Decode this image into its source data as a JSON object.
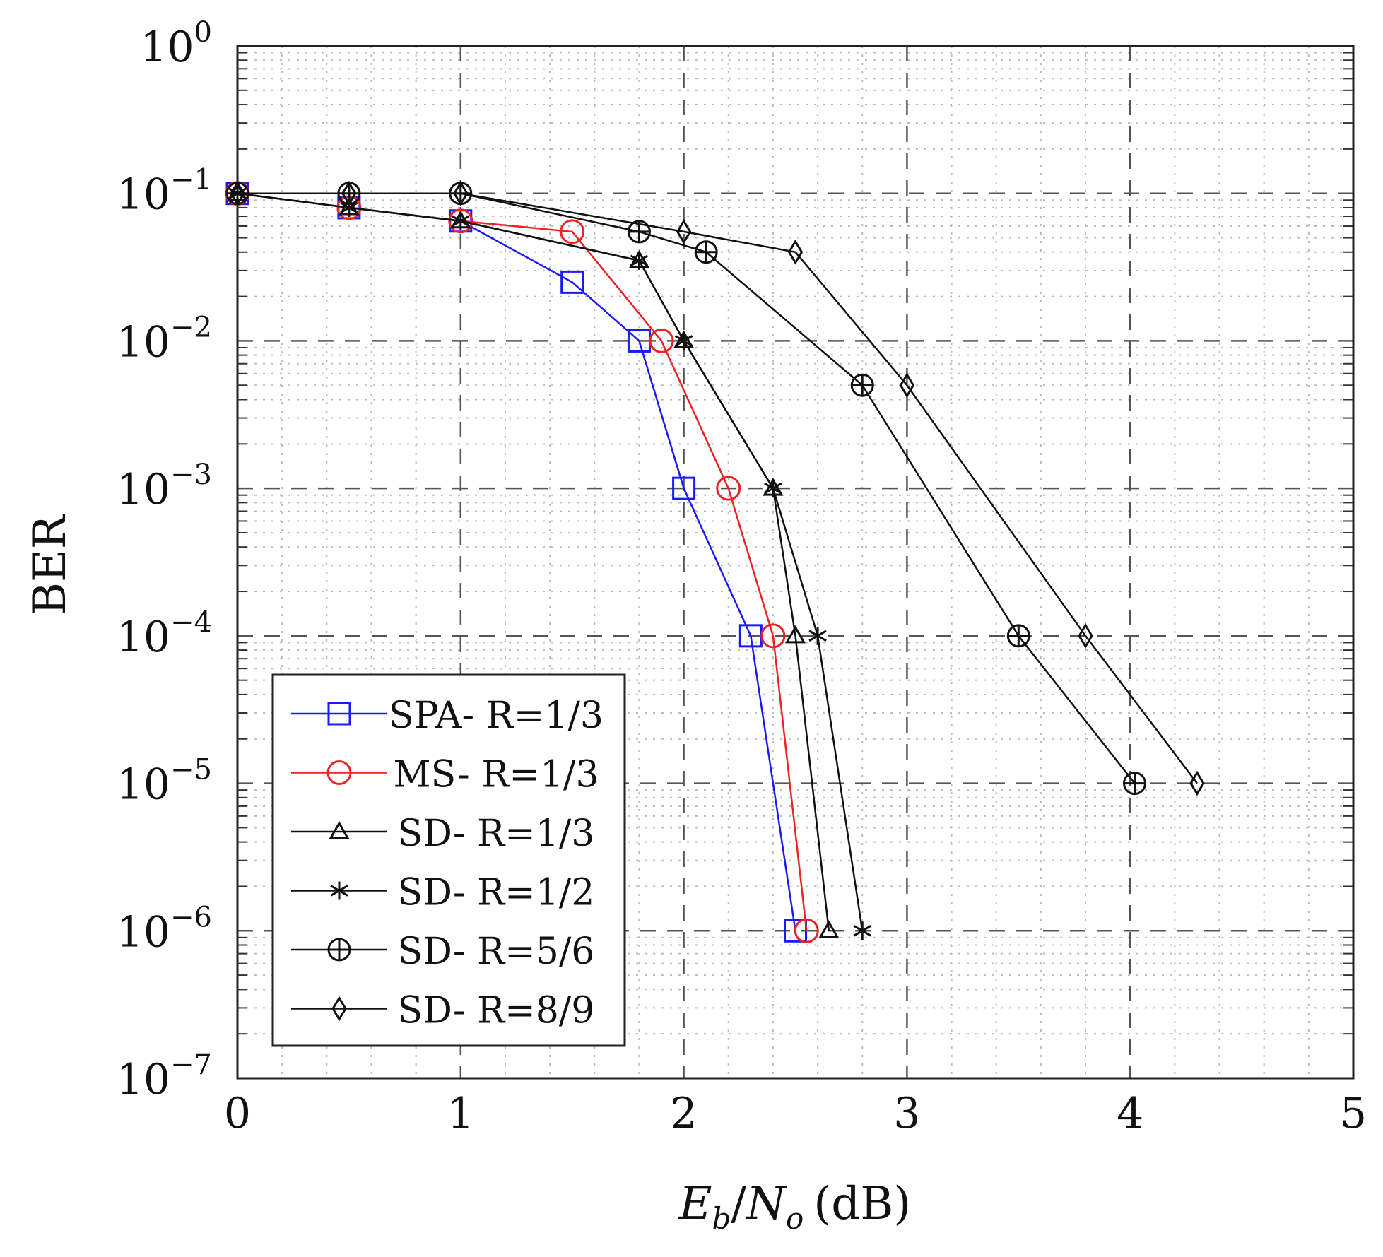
{
  "chart_data": {
    "type": "line",
    "title": "",
    "xlabel": "E_b/N_o (dB)",
    "xlabel_parts": {
      "E": "E",
      "b": "b",
      "slash": "/",
      "N": "N",
      "o": "o",
      "unit": "(dB)"
    },
    "ylabel": "BER",
    "xlim": [
      0,
      5
    ],
    "ylim": [
      1e-07,
      1
    ],
    "yscale": "log",
    "grid": true,
    "legend_position": "lower-left",
    "x_ticks": [
      "0",
      "1",
      "2",
      "3",
      "4",
      "5"
    ],
    "y_ticks": [
      {
        "base": "10",
        "exp": "0"
      },
      {
        "base": "10",
        "exp": "−1"
      },
      {
        "base": "10",
        "exp": "−2"
      },
      {
        "base": "10",
        "exp": "−3"
      },
      {
        "base": "10",
        "exp": "−4"
      },
      {
        "base": "10",
        "exp": "−5"
      },
      {
        "base": "10",
        "exp": "−6"
      },
      {
        "base": "10",
        "exp": "−7"
      }
    ],
    "series": [
      {
        "name": "SPA- R=1/3",
        "color": "#1a1aff",
        "marker": "square",
        "x": [
          0,
          0.5,
          1,
          1.5,
          1.8,
          2.0,
          2.3,
          2.5
        ],
        "y": [
          0.1,
          0.08,
          0.065,
          0.025,
          0.01,
          0.001,
          0.0001,
          1e-06
        ]
      },
      {
        "name": "MS- R=1/3",
        "color": "#ee2222",
        "marker": "circle",
        "x": [
          0,
          0.5,
          1,
          1.5,
          1.9,
          2.2,
          2.4,
          2.55
        ],
        "y": [
          0.1,
          0.08,
          0.065,
          0.055,
          0.01,
          0.001,
          0.0001,
          1e-06
        ]
      },
      {
        "name": "SD- R=1/3",
        "color": "#111111",
        "marker": "triangle",
        "x": [
          0,
          0.5,
          1,
          1.8,
          2.0,
          2.4,
          2.5,
          2.65
        ],
        "y": [
          0.1,
          0.08,
          0.065,
          0.035,
          0.01,
          0.001,
          0.0001,
          1e-06
        ]
      },
      {
        "name": "SD- R=1/2",
        "color": "#111111",
        "marker": "star",
        "x": [
          0,
          0.5,
          1,
          1.8,
          2.0,
          2.4,
          2.6,
          2.8
        ],
        "y": [
          0.1,
          0.08,
          0.065,
          0.035,
          0.01,
          0.001,
          0.0001,
          1e-06
        ]
      },
      {
        "name": "SD- R=5/6",
        "color": "#111111",
        "marker": "oplus",
        "x": [
          0,
          0.5,
          1,
          1.8,
          2.1,
          2.8,
          3.5,
          4.02
        ],
        "y": [
          0.1,
          0.1,
          0.1,
          0.055,
          0.04,
          0.005,
          0.0001,
          1e-05
        ]
      },
      {
        "name": "SD- R=8/9",
        "color": "#111111",
        "marker": "diamond",
        "x": [
          0,
          0.5,
          1,
          2.0,
          2.5,
          3.0,
          3.8,
          4.3
        ],
        "y": [
          0.1,
          0.1,
          0.1,
          0.055,
          0.04,
          0.005,
          0.0001,
          1e-05
        ]
      }
    ]
  }
}
